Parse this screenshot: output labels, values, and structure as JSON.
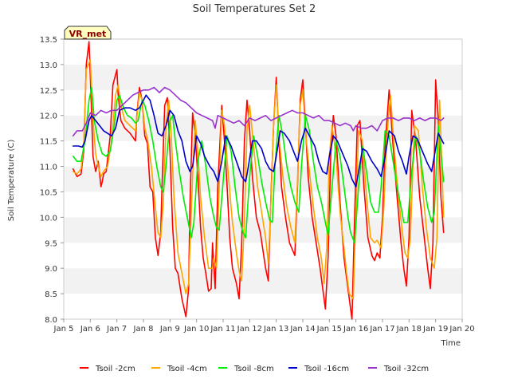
{
  "chart_data": {
    "type": "line",
    "title": "Soil Temperatures Set 2",
    "xlabel": "Time",
    "ylabel": "Soil Temperature (C)",
    "badge": "VR_met",
    "xlim": [
      5,
      20
    ],
    "ylim": [
      8.0,
      13.5
    ],
    "x_ticks": [
      5,
      6,
      7,
      8,
      9,
      10,
      11,
      12,
      13,
      14,
      15,
      16,
      17,
      18,
      19,
      20
    ],
    "x_tick_labels": [
      "Jan 5",
      "Jan 6",
      "Jan 7",
      "Jan 8",
      "Jan 9",
      "Jan 10",
      "Jan 11",
      "Jan 12",
      "Jan 13",
      "Jan 14",
      "Jan 15",
      "Jan 16",
      "Jan 17",
      "Jan 18",
      "Jan 19",
      "Jan 20"
    ],
    "y_ticks": [
      8.0,
      8.5,
      9.0,
      9.5,
      10.0,
      10.5,
      11.0,
      11.5,
      12.0,
      12.5,
      13.0,
      13.5
    ],
    "y_tick_labels": [
      "8.0",
      "8.5",
      "9.0",
      "9.5",
      "10.0",
      "10.5",
      "11.0",
      "11.5",
      "12.0",
      "12.5",
      "13.0",
      "13.5"
    ],
    "grid": "horizontal-bands",
    "legend_position": "bottom",
    "series": [
      {
        "name": "Tsoil -2cm",
        "color": "#ff0000",
        "x": [
          5.35,
          5.5,
          5.65,
          5.75,
          5.85,
          5.95,
          6.0,
          6.1,
          6.2,
          6.3,
          6.4,
          6.45,
          6.5,
          6.6,
          6.75,
          6.85,
          7.0,
          7.05,
          7.15,
          7.3,
          7.5,
          7.7,
          7.75,
          7.85,
          7.95,
          8.05,
          8.15,
          8.25,
          8.35,
          8.45,
          8.55,
          8.65,
          8.7,
          8.8,
          8.9,
          9.0,
          9.1,
          9.2,
          9.3,
          9.45,
          9.6,
          9.7,
          9.75,
          9.85,
          9.95,
          10.05,
          10.15,
          10.25,
          10.35,
          10.45,
          10.55,
          10.6,
          10.7,
          10.8,
          10.95,
          11.05,
          11.15,
          11.25,
          11.35,
          11.5,
          11.6,
          11.7,
          11.8,
          11.9,
          12.0,
          12.1,
          12.25,
          12.4,
          12.6,
          12.7,
          12.8,
          12.9,
          13.0,
          13.1,
          13.2,
          13.35,
          13.5,
          13.7,
          13.8,
          13.9,
          14.0,
          14.1,
          14.2,
          14.35,
          14.5,
          14.65,
          14.75,
          14.85,
          14.95,
          15.05,
          15.15,
          15.25,
          15.4,
          15.55,
          15.65,
          15.75,
          15.85,
          15.95,
          16.05,
          16.15,
          16.3,
          16.45,
          16.6,
          16.7,
          16.8,
          16.9,
          17.0,
          17.1,
          17.25,
          17.4,
          17.55,
          17.7,
          17.8,
          17.9,
          18.0,
          18.1,
          18.25,
          18.4,
          18.55,
          18.7,
          18.8,
          18.9,
          19.0,
          19.1,
          19.2,
          19.3
        ],
        "y": [
          10.95,
          10.8,
          10.85,
          11.3,
          13.0,
          13.45,
          12.8,
          11.2,
          10.9,
          11.1,
          10.6,
          10.7,
          10.85,
          10.9,
          11.6,
          12.6,
          12.9,
          12.4,
          11.9,
          11.75,
          11.65,
          11.5,
          12.0,
          12.55,
          12.3,
          11.6,
          11.45,
          10.6,
          10.5,
          9.6,
          9.25,
          9.7,
          10.6,
          12.2,
          12.35,
          11.3,
          9.8,
          9.0,
          8.9,
          8.4,
          8.05,
          8.6,
          10.2,
          12.05,
          11.6,
          10.8,
          9.8,
          9.2,
          8.9,
          8.55,
          8.6,
          9.5,
          8.6,
          10.6,
          12.2,
          11.5,
          10.6,
          9.6,
          9.0,
          8.7,
          8.4,
          9.5,
          11.5,
          12.3,
          11.7,
          10.8,
          10.0,
          9.7,
          9.0,
          8.75,
          10.4,
          11.8,
          12.75,
          11.5,
          10.6,
          10.0,
          9.5,
          9.25,
          10.6,
          12.3,
          12.7,
          11.8,
          10.8,
          10.0,
          9.5,
          9.0,
          8.6,
          8.2,
          9.2,
          11.2,
          12.0,
          11.6,
          10.3,
          9.2,
          8.8,
          8.4,
          8.0,
          10.0,
          11.8,
          11.9,
          10.6,
          9.6,
          9.25,
          9.15,
          9.3,
          9.2,
          10.0,
          11.4,
          12.5,
          11.4,
          10.4,
          9.5,
          9.0,
          8.65,
          9.6,
          12.1,
          11.5,
          10.4,
          9.7,
          9.0,
          8.6,
          9.5,
          12.7,
          11.9,
          10.4,
          9.7
        ]
      },
      {
        "name": "Tsoil -4cm",
        "color": "#ffa500",
        "x": [
          5.35,
          5.5,
          5.65,
          5.75,
          5.85,
          6.0,
          6.1,
          6.2,
          6.3,
          6.4,
          6.5,
          6.65,
          6.8,
          6.95,
          7.05,
          7.15,
          7.3,
          7.5,
          7.7,
          7.85,
          7.95,
          8.05,
          8.15,
          8.3,
          8.45,
          8.55,
          8.65,
          8.75,
          8.85,
          8.95,
          9.05,
          9.15,
          9.3,
          9.45,
          9.6,
          9.7,
          9.85,
          9.95,
          10.05,
          10.15,
          10.3,
          10.45,
          10.6,
          10.65,
          10.75,
          10.85,
          10.95,
          11.05,
          11.2,
          11.35,
          11.5,
          11.6,
          11.7,
          11.8,
          11.9,
          12.0,
          12.15,
          12.3,
          12.45,
          12.6,
          12.7,
          12.8,
          12.9,
          13.0,
          13.1,
          13.25,
          13.4,
          13.55,
          13.7,
          13.8,
          13.9,
          14.0,
          14.1,
          14.25,
          14.4,
          14.55,
          14.7,
          14.8,
          14.9,
          15.0,
          15.1,
          15.25,
          15.4,
          15.55,
          15.65,
          15.75,
          15.9,
          16.0,
          16.1,
          16.25,
          16.4,
          16.55,
          16.7,
          16.8,
          16.95,
          17.05,
          17.15,
          17.3,
          17.45,
          17.6,
          17.75,
          17.85,
          17.95,
          18.05,
          18.2,
          18.35,
          18.5,
          18.65,
          18.8,
          18.95,
          19.05,
          19.15,
          19.3
        ],
        "y": [
          10.9,
          10.85,
          10.95,
          11.4,
          12.9,
          13.1,
          11.9,
          11.25,
          11.0,
          10.8,
          10.9,
          11.0,
          11.5,
          12.4,
          12.6,
          12.2,
          11.9,
          11.8,
          11.7,
          12.45,
          12.3,
          11.75,
          11.55,
          11.0,
          10.2,
          9.7,
          9.6,
          10.3,
          11.8,
          12.3,
          11.6,
          10.4,
          9.3,
          8.9,
          8.5,
          8.7,
          10.8,
          11.9,
          11.3,
          10.4,
          9.6,
          9.0,
          9.0,
          9.2,
          9.0,
          10.6,
          12.1,
          11.8,
          10.8,
          9.9,
          9.3,
          8.95,
          8.75,
          9.9,
          11.7,
          12.2,
          11.4,
          10.6,
          10.1,
          9.6,
          9.1,
          10.3,
          11.8,
          12.6,
          11.6,
          10.8,
          10.2,
          9.8,
          9.5,
          10.7,
          12.2,
          12.5,
          11.7,
          10.9,
          10.2,
          9.6,
          9.2,
          8.7,
          9.4,
          11.2,
          11.8,
          11.2,
          10.1,
          9.4,
          8.9,
          8.5,
          8.4,
          10.1,
          11.7,
          11.5,
          10.4,
          9.6,
          9.5,
          9.55,
          9.4,
          10.2,
          11.5,
          12.4,
          11.3,
          10.4,
          9.7,
          9.3,
          9.2,
          9.6,
          11.8,
          11.7,
          10.6,
          9.8,
          9.2,
          9.0,
          9.6,
          12.3,
          10.0
        ]
      },
      {
        "name": "Tsoil -8cm",
        "color": "#00ee00",
        "x": [
          5.35,
          5.5,
          5.65,
          5.8,
          5.95,
          6.05,
          6.15,
          6.3,
          6.45,
          6.6,
          6.75,
          6.9,
          7.0,
          7.1,
          7.25,
          7.4,
          7.55,
          7.7,
          7.8,
          7.95,
          8.05,
          8.2,
          8.35,
          8.5,
          8.65,
          8.75,
          8.85,
          9.0,
          9.1,
          9.2,
          9.35,
          9.5,
          9.65,
          9.8,
          9.9,
          10.05,
          10.2,
          10.35,
          10.5,
          10.65,
          10.75,
          10.85,
          11.0,
          11.15,
          11.3,
          11.45,
          11.6,
          11.75,
          11.85,
          12.0,
          12.15,
          12.3,
          12.45,
          12.6,
          12.75,
          12.85,
          12.95,
          13.1,
          13.25,
          13.4,
          13.55,
          13.7,
          13.85,
          13.95,
          14.1,
          14.25,
          14.4,
          14.55,
          14.7,
          14.85,
          14.95,
          15.1,
          15.25,
          15.4,
          15.55,
          15.7,
          15.8,
          15.95,
          16.1,
          16.25,
          16.4,
          16.55,
          16.7,
          16.85,
          16.95,
          17.1,
          17.25,
          17.4,
          17.55,
          17.7,
          17.8,
          17.95,
          18.1,
          18.25,
          18.4,
          18.55,
          18.7,
          18.85,
          18.95,
          19.1,
          19.3
        ],
        "y": [
          11.2,
          11.1,
          11.1,
          11.5,
          12.3,
          12.55,
          11.9,
          11.5,
          11.25,
          11.2,
          11.3,
          11.8,
          12.3,
          12.4,
          12.15,
          12.0,
          11.95,
          11.85,
          11.9,
          12.3,
          12.2,
          11.9,
          11.5,
          11.0,
          10.6,
          10.5,
          11.0,
          11.9,
          12.0,
          11.5,
          10.9,
          10.4,
          10.0,
          9.6,
          9.9,
          11.1,
          11.5,
          11.0,
          10.4,
          10.0,
          9.8,
          9.75,
          10.7,
          11.6,
          11.3,
          10.6,
          10.0,
          9.7,
          9.6,
          10.8,
          11.6,
          11.2,
          10.7,
          10.3,
          9.95,
          9.9,
          11.0,
          12.0,
          11.6,
          11.0,
          10.6,
          10.3,
          10.1,
          11.0,
          12.0,
          11.7,
          11.1,
          10.6,
          10.3,
          9.9,
          9.65,
          10.6,
          11.5,
          11.2,
          10.6,
          10.0,
          9.7,
          9.5,
          10.6,
          11.4,
          10.9,
          10.3,
          10.1,
          10.1,
          10.6,
          11.7,
          11.6,
          11.1,
          10.6,
          10.2,
          9.9,
          9.9,
          10.9,
          11.6,
          11.3,
          10.7,
          10.2,
          9.9,
          10.1,
          11.8,
          10.7
        ]
      },
      {
        "name": "Tsoil -16cm",
        "color": "#0000cc",
        "x": [
          5.35,
          5.55,
          5.7,
          5.8,
          5.95,
          6.05,
          6.2,
          6.35,
          6.5,
          6.65,
          6.8,
          6.95,
          7.1,
          7.3,
          7.5,
          7.7,
          7.85,
          8.0,
          8.1,
          8.25,
          8.4,
          8.55,
          8.7,
          8.85,
          9.0,
          9.15,
          9.3,
          9.45,
          9.6,
          9.75,
          9.85,
          10.0,
          10.15,
          10.3,
          10.5,
          10.65,
          10.8,
          10.95,
          11.1,
          11.3,
          11.5,
          11.7,
          11.85,
          11.95,
          12.1,
          12.25,
          12.45,
          12.6,
          12.75,
          12.9,
          13.0,
          13.15,
          13.3,
          13.5,
          13.65,
          13.8,
          13.95,
          14.1,
          14.25,
          14.45,
          14.6,
          14.75,
          14.9,
          15.0,
          15.15,
          15.3,
          15.5,
          15.7,
          15.85,
          16.0,
          16.1,
          16.25,
          16.4,
          16.6,
          16.8,
          16.95,
          17.1,
          17.25,
          17.45,
          17.6,
          17.75,
          17.9,
          18.0,
          18.15,
          18.3,
          18.5,
          18.7,
          18.85,
          18.95,
          19.1,
          19.3
        ],
        "y": [
          11.4,
          11.4,
          11.38,
          11.5,
          11.9,
          12.0,
          11.9,
          11.8,
          11.7,
          11.65,
          11.6,
          11.75,
          12.1,
          12.15,
          12.15,
          12.1,
          12.15,
          12.3,
          12.4,
          12.3,
          12.0,
          11.65,
          11.6,
          11.8,
          12.1,
          12.0,
          11.7,
          11.5,
          11.1,
          10.9,
          11.0,
          11.6,
          11.45,
          11.2,
          11.0,
          10.9,
          10.7,
          11.1,
          11.6,
          11.4,
          11.1,
          10.8,
          10.7,
          11.0,
          11.5,
          11.5,
          11.35,
          11.1,
          10.95,
          10.9,
          11.2,
          11.7,
          11.65,
          11.5,
          11.3,
          11.1,
          11.5,
          11.75,
          11.6,
          11.4,
          11.1,
          10.9,
          10.85,
          11.2,
          11.6,
          11.5,
          11.25,
          11.0,
          10.75,
          10.6,
          10.9,
          11.35,
          11.3,
          11.1,
          10.95,
          10.8,
          11.2,
          11.7,
          11.6,
          11.3,
          11.1,
          10.85,
          11.2,
          11.6,
          11.55,
          11.3,
          11.05,
          10.9,
          11.2,
          11.65,
          11.45
        ]
      },
      {
        "name": "Tsoil -32cm",
        "color": "#9933cc",
        "x": [
          5.35,
          5.5,
          5.7,
          5.85,
          6.0,
          6.2,
          6.4,
          6.6,
          6.8,
          7.0,
          7.2,
          7.4,
          7.6,
          7.8,
          8.0,
          8.2,
          8.4,
          8.6,
          8.8,
          9.0,
          9.2,
          9.4,
          9.6,
          9.8,
          10.0,
          10.2,
          10.4,
          10.6,
          10.7,
          10.8,
          11.0,
          11.2,
          11.4,
          11.6,
          11.8,
          12.0,
          12.2,
          12.4,
          12.6,
          12.8,
          13.0,
          13.2,
          13.4,
          13.6,
          13.8,
          14.0,
          14.2,
          14.4,
          14.6,
          14.8,
          15.0,
          15.2,
          15.4,
          15.6,
          15.8,
          15.9,
          16.0,
          16.2,
          16.4,
          16.6,
          16.8,
          17.0,
          17.2,
          17.4,
          17.6,
          17.8,
          18.0,
          18.2,
          18.4,
          18.6,
          18.8,
          19.0,
          19.2,
          19.3
        ],
        "y": [
          11.6,
          11.7,
          11.7,
          11.85,
          12.05,
          12.0,
          12.1,
          12.05,
          12.1,
          12.1,
          12.2,
          12.3,
          12.4,
          12.45,
          12.5,
          12.5,
          12.55,
          12.45,
          12.55,
          12.5,
          12.4,
          12.3,
          12.25,
          12.15,
          12.05,
          12.0,
          11.95,
          11.9,
          11.75,
          12.0,
          11.95,
          11.9,
          11.85,
          11.9,
          11.8,
          11.95,
          11.9,
          11.95,
          12.0,
          11.9,
          11.95,
          12.0,
          12.05,
          12.1,
          12.05,
          12.05,
          12.0,
          11.95,
          12.0,
          11.9,
          11.9,
          11.85,
          11.8,
          11.85,
          11.8,
          11.7,
          11.8,
          11.75,
          11.75,
          11.8,
          11.7,
          11.9,
          11.95,
          11.95,
          11.9,
          11.95,
          11.95,
          11.9,
          11.95,
          11.9,
          11.95,
          11.95,
          11.9,
          11.95
        ]
      }
    ]
  }
}
